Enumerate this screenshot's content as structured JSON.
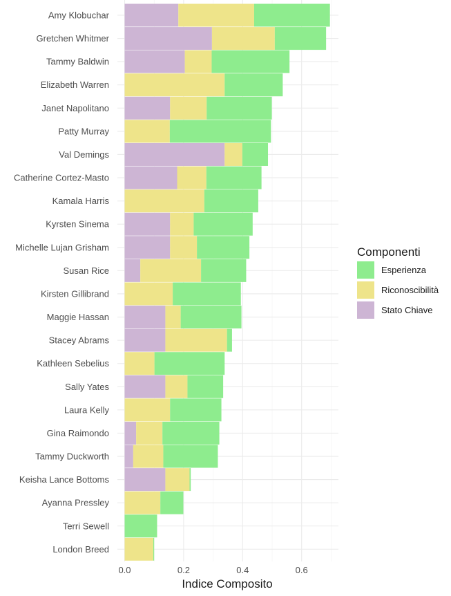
{
  "chart_data": {
    "type": "bar",
    "orientation": "horizontal",
    "stacked": true,
    "title": "",
    "xlabel": "Indice Composito",
    "ylabel": "",
    "xlim": [
      0,
      0.72
    ],
    "x_ticks": [
      "0.0",
      "0.2",
      "0.4",
      "0.6"
    ],
    "x_tick_values": [
      0,
      0.2,
      0.4,
      0.6
    ],
    "grid": true,
    "legend": {
      "title": "Componenti",
      "position": "right",
      "entries": [
        "Esperienza",
        "Riconoscibilità",
        "Stato Chiave"
      ]
    },
    "stack_order": [
      "Stato Chiave",
      "Riconoscibilità",
      "Esperienza"
    ],
    "categories": [
      "Amy Klobuchar",
      "Gretchen Whitmer",
      "Tammy Baldwin",
      "Elizabeth Warren",
      "Janet Napolitano",
      "Patty Murray",
      "Val Demings",
      "Catherine Cortez-Masto",
      "Kamala Harris",
      "Kyrsten Sinema",
      "Michelle Lujan Grisham",
      "Susan Rice",
      "Kirsten Gillibrand",
      "Maggie Hassan",
      "Stacey Abrams",
      "Kathleen Sebelius",
      "Sally Yates",
      "Laura Kelly",
      "Gina Raimondo",
      "Tammy Duckworth",
      "Keisha Lance Bottoms",
      "Ayanna Pressley",
      "Terri Sewell",
      "London Breed"
    ],
    "series": [
      {
        "name": "Stato Chiave",
        "color": "#CDB5D4",
        "values": [
          0.182,
          0.296,
          0.204,
          0.0,
          0.154,
          0.0,
          0.339,
          0.178,
          0.0,
          0.154,
          0.154,
          0.053,
          0.0,
          0.138,
          0.138,
          0.0,
          0.138,
          0.0,
          0.039,
          0.029,
          0.138,
          0.0,
          0.0,
          0.0
        ]
      },
      {
        "name": "Riconoscibilità",
        "color": "#EEE48A",
        "values": [
          0.257,
          0.213,
          0.091,
          0.339,
          0.124,
          0.153,
          0.06,
          0.099,
          0.27,
          0.08,
          0.091,
          0.206,
          0.163,
          0.052,
          0.209,
          0.101,
          0.075,
          0.154,
          0.089,
          0.102,
          0.082,
          0.121,
          0.0,
          0.097
        ]
      },
      {
        "name": "Esperienza",
        "color": "#8EEC8E",
        "values": [
          0.257,
          0.174,
          0.264,
          0.197,
          0.221,
          0.343,
          0.087,
          0.187,
          0.183,
          0.2,
          0.178,
          0.153,
          0.231,
          0.206,
          0.017,
          0.238,
          0.121,
          0.174,
          0.193,
          0.185,
          0.004,
          0.078,
          0.11,
          0.003
        ]
      }
    ]
  }
}
